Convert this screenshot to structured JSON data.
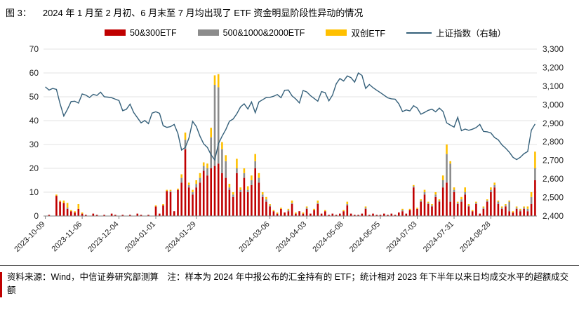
{
  "title": {
    "prefix": "图 3：",
    "text": "2024 年 1 月至 2 月初、6 月末至 7 月均出现了 ETF 资金明显阶段性异动的情况"
  },
  "footer": {
    "note": "资料来源：Wind，中信证券研究部测算　注：样本为 2024 年中报公布的汇金持有的 ETF；统计相对 2023 年下半年以来日均成交水平的超额成交额"
  },
  "colors": {
    "red": "#C00000",
    "gray": "#8C8C8C",
    "yellow": "#FFC000",
    "line": "#35607A",
    "grid": "#E3E3E3",
    "axis": "#7F7F7F"
  },
  "legend": [
    {
      "label": "50&300ETF",
      "color": "#C00000",
      "type": "bar"
    },
    {
      "label": "500&1000&2000ETF",
      "color": "#8C8C8C",
      "type": "bar"
    },
    {
      "label": "双创ETF",
      "color": "#FFC000",
      "type": "bar"
    },
    {
      "label": "上证指数（右轴）",
      "color": "#35607A",
      "type": "line"
    }
  ],
  "chart_data": {
    "type": "bar",
    "subtype": "stacked-bars-with-line",
    "x": [
      "2023-10-09",
      "2023-10-11",
      "2023-10-13",
      "2023-10-17",
      "2023-10-19",
      "2023-10-23",
      "2023-10-25",
      "2023-10-27",
      "2023-10-31",
      "2023-11-02",
      "2023-11-06",
      "2023-11-08",
      "2023-11-10",
      "2023-11-14",
      "2023-11-16",
      "2023-11-20",
      "2023-11-22",
      "2023-11-24",
      "2023-11-28",
      "2023-11-30",
      "2023-12-04",
      "2023-12-06",
      "2023-12-08",
      "2023-12-12",
      "2023-12-14",
      "2023-12-18",
      "2023-12-20",
      "2023-12-22",
      "2023-12-26",
      "2023-12-28",
      "2024-01-02",
      "2024-01-04",
      "2024-01-08",
      "2024-01-10",
      "2024-01-12",
      "2024-01-16",
      "2024-01-18",
      "2024-01-22",
      "2024-01-23",
      "2024-01-24",
      "2024-01-26",
      "2024-01-29",
      "2024-01-30",
      "2024-01-31",
      "2024-02-01",
      "2024-02-02",
      "2024-02-05",
      "2024-02-06",
      "2024-02-07",
      "2024-02-08",
      "2024-02-19",
      "2024-02-20",
      "2024-02-21",
      "2024-02-22",
      "2024-02-23",
      "2024-02-26",
      "2024-02-27",
      "2024-02-28",
      "2024-02-29",
      "2024-03-01",
      "2024-03-04",
      "2024-03-06",
      "2024-03-08",
      "2024-03-12",
      "2024-03-14",
      "2024-03-18",
      "2024-03-20",
      "2024-03-22",
      "2024-03-26",
      "2024-03-28",
      "2024-04-01",
      "2024-04-03",
      "2024-04-09",
      "2024-04-11",
      "2024-04-15",
      "2024-04-17",
      "2024-04-19",
      "2024-04-23",
      "2024-04-25",
      "2024-04-29",
      "2024-05-06",
      "2024-05-08",
      "2024-05-10",
      "2024-05-14",
      "2024-05-16",
      "2024-05-20",
      "2024-05-22",
      "2024-05-24",
      "2024-05-28",
      "2024-05-30",
      "2024-06-03",
      "2024-06-05",
      "2024-06-07",
      "2024-06-12",
      "2024-06-14",
      "2024-06-18",
      "2024-06-20",
      "2024-06-24",
      "2024-06-26",
      "2024-06-28",
      "2024-07-01",
      "2024-07-03",
      "2024-07-05",
      "2024-07-09",
      "2024-07-11",
      "2024-07-15",
      "2024-07-17",
      "2024-07-19",
      "2024-07-22",
      "2024-07-24",
      "2024-07-26",
      "2024-07-30",
      "2024-08-01",
      "2024-08-05",
      "2024-08-07",
      "2024-08-09",
      "2024-08-13",
      "2024-08-15",
      "2024-08-19",
      "2024-08-21",
      "2024-08-23",
      "2024-08-27",
      "2024-08-29",
      "2024-09-02",
      "2024-09-04",
      "2024-09-06",
      "2024-09-10",
      "2024-09-12",
      "2024-09-13",
      "2024-09-18",
      "2024-09-20",
      "2024-09-23",
      "2024-09-24",
      "2024-09-25"
    ],
    "series": [
      {
        "name": "50&300ETF",
        "type": "bar",
        "stack": true,
        "color": "#C00000",
        "values": [
          0,
          0.5,
          0,
          8.5,
          6,
          5.5,
          3,
          2,
          1.5,
          3,
          1,
          0.5,
          0,
          1,
          0.5,
          0,
          0.5,
          0,
          1,
          0.5,
          0,
          0.5,
          0,
          0.5,
          0,
          1,
          0.5,
          0,
          0.5,
          0,
          4,
          1,
          4.5,
          10.5,
          10,
          2,
          11,
          14,
          28,
          12,
          9,
          12,
          14,
          19,
          17,
          20,
          21,
          22,
          18,
          16,
          11,
          8,
          18,
          10,
          16,
          10,
          13,
          20,
          14,
          8,
          6,
          4,
          2,
          1,
          3,
          1.5,
          2,
          5,
          1,
          2,
          1,
          3,
          1,
          2.5,
          5,
          1,
          2,
          0.5,
          1,
          0.5,
          1,
          2,
          4.5,
          1,
          0.5,
          0.5,
          1,
          3,
          0.5,
          1,
          0.5,
          0.5,
          1,
          0.5,
          1,
          0.5,
          1.5,
          2,
          1,
          2.5,
          12,
          3,
          6,
          9,
          5,
          4,
          8,
          6,
          12,
          14,
          6,
          10,
          5,
          6,
          9,
          4,
          2,
          5,
          1,
          3,
          6,
          10,
          12,
          5,
          3,
          4,
          2,
          1.5,
          3,
          2,
          3,
          2,
          5,
          15
        ]
      },
      {
        "name": "500&1000&2000ETF",
        "type": "bar",
        "stack": true,
        "color": "#8C8C8C",
        "values": [
          0,
          0,
          0,
          0,
          0,
          0,
          0.5,
          0,
          0,
          0,
          0,
          0,
          0,
          0,
          0,
          0,
          0,
          0,
          0,
          0,
          0,
          0,
          0,
          0,
          0,
          0,
          0,
          0,
          0,
          0,
          0,
          0,
          0,
          0,
          0.5,
          0,
          0,
          2,
          4,
          1,
          1,
          1.5,
          2,
          2,
          3,
          13,
          34,
          32,
          10,
          7,
          1,
          1,
          2,
          1,
          2,
          1,
          2,
          3,
          2,
          1,
          1,
          0.5,
          0,
          0,
          0,
          0,
          0.5,
          0.5,
          0,
          0,
          0,
          0.5,
          0,
          0,
          0.5,
          0,
          0,
          0,
          0,
          0,
          0,
          0,
          0.5,
          0,
          0,
          0,
          0,
          0.5,
          0,
          0,
          0,
          0,
          0,
          0,
          0,
          0,
          0,
          0.5,
          0,
          0,
          0.5,
          0,
          0.5,
          1,
          0.5,
          0.5,
          1,
          0.5,
          3,
          12,
          16,
          1,
          0.5,
          1,
          1,
          0.5,
          0,
          0.5,
          0,
          0.5,
          0.5,
          1,
          1,
          1,
          0.5,
          0.5,
          4,
          0,
          0.5,
          0.5,
          0.5,
          1,
          3,
          5
        ]
      },
      {
        "name": "双创ETF",
        "type": "bar",
        "stack": true,
        "color": "#FFC000",
        "values": [
          0,
          0,
          0,
          0.5,
          0.5,
          1,
          2,
          0.5,
          0.5,
          2,
          0.5,
          0,
          0,
          0,
          0,
          0,
          0,
          0,
          0,
          0,
          0,
          0,
          0,
          0,
          0,
          0,
          0,
          0,
          0,
          0,
          0.5,
          0,
          0.5,
          0.5,
          0.5,
          0,
          0.5,
          1.5,
          3,
          1,
          1,
          1.5,
          2,
          1.5,
          2,
          4,
          4,
          5.5,
          3,
          2.5,
          1.5,
          1,
          4,
          1,
          2,
          1.5,
          2,
          3,
          2,
          1,
          1,
          0.5,
          0.5,
          0.5,
          0.5,
          0,
          0.5,
          1,
          0.5,
          0,
          0.5,
          0.5,
          0,
          0.5,
          1,
          0,
          0.5,
          0,
          0,
          0,
          0,
          0.5,
          1,
          0,
          0,
          0,
          0,
          0.5,
          0,
          0,
          0,
          0,
          0,
          0,
          0,
          0,
          0,
          0.5,
          0,
          0.5,
          0.5,
          0.5,
          0.5,
          1,
          0.5,
          0.5,
          1,
          0.5,
          2,
          4,
          1,
          1,
          0.5,
          1,
          2,
          0.5,
          0.5,
          0.5,
          0,
          0.5,
          0.5,
          1,
          1,
          0.5,
          0.5,
          0.5,
          0.5,
          0.5,
          0.5,
          0.5,
          0.5,
          1,
          2,
          7
        ]
      },
      {
        "name": "上证指数（右轴）",
        "type": "line",
        "axis": "right",
        "color": "#35607A",
        "values": [
          3096,
          3079,
          3088,
          3083,
          3005,
          2939,
          2975,
          3017,
          3019,
          3009,
          3058,
          3052,
          3039,
          3056,
          3050,
          3068,
          3043,
          3041,
          3038,
          3030,
          3023,
          2968,
          2975,
          3003,
          2958,
          2930,
          2902,
          2915,
          2898,
          2955,
          2962,
          2954,
          2887,
          2878,
          2882,
          2894,
          2845,
          2756,
          2770,
          2820,
          2910,
          2883,
          2830,
          2789,
          2770,
          2730,
          2702,
          2789,
          2830,
          2866,
          2911,
          2923,
          2951,
          2988,
          3005,
          2977,
          3015,
          2957,
          3015,
          3027,
          3039,
          3040,
          3046,
          3055,
          3038,
          3078,
          3079,
          3048,
          3031,
          3010,
          3077,
          3069,
          3049,
          3034,
          3019,
          3071,
          3065,
          3021,
          3052,
          3113,
          3141,
          3128,
          3155,
          3146,
          3122,
          3171,
          3158,
          3088,
          3109,
          3092,
          3078,
          3065,
          3051,
          3037,
          3032,
          3030,
          3005,
          2963,
          2972,
          2967,
          2995,
          2982,
          2949,
          2959,
          2970,
          2976,
          2962,
          2982,
          2964,
          2902,
          2890,
          2879,
          2932,
          2860,
          2869,
          2862,
          2868,
          2877,
          2894,
          2856,
          2854,
          2848,
          2823,
          2811,
          2784,
          2766,
          2744,
          2717,
          2704,
          2717,
          2736,
          2748,
          2863,
          2896
        ]
      }
    ],
    "left_axis": {
      "min": 0,
      "max": 70,
      "step": 10,
      "ticks": [
        "0",
        "10",
        "20",
        "30",
        "40",
        "50",
        "60",
        "70"
      ]
    },
    "right_axis": {
      "min": 2400,
      "max": 3300,
      "step": 100,
      "ticks": [
        "2,400",
        "2,500",
        "2,600",
        "2,700",
        "2,800",
        "2,900",
        "3,000",
        "3,100",
        "3,200",
        "3,300"
      ]
    },
    "x_ticks": [
      {
        "label": "2023-10-09",
        "i": 0
      },
      {
        "label": "2023-11-06",
        "i": 10
      },
      {
        "label": "2023-12-04",
        "i": 20
      },
      {
        "label": "2024-01-01",
        "i": 30
      },
      {
        "label": "2024-01-29",
        "i": 41
      },
      {
        "label": "2024-03-06",
        "i": 61
      },
      {
        "label": "2024-04-03",
        "i": 71
      },
      {
        "label": "2024-05-08",
        "i": 81
      },
      {
        "label": "2024-06-05",
        "i": 91
      },
      {
        "label": "2024-07-03",
        "i": 101
      },
      {
        "label": "2024-07-31",
        "i": 111
      },
      {
        "label": "2024-08-28",
        "i": 121
      }
    ],
    "grid": true,
    "legend_position": "top"
  }
}
